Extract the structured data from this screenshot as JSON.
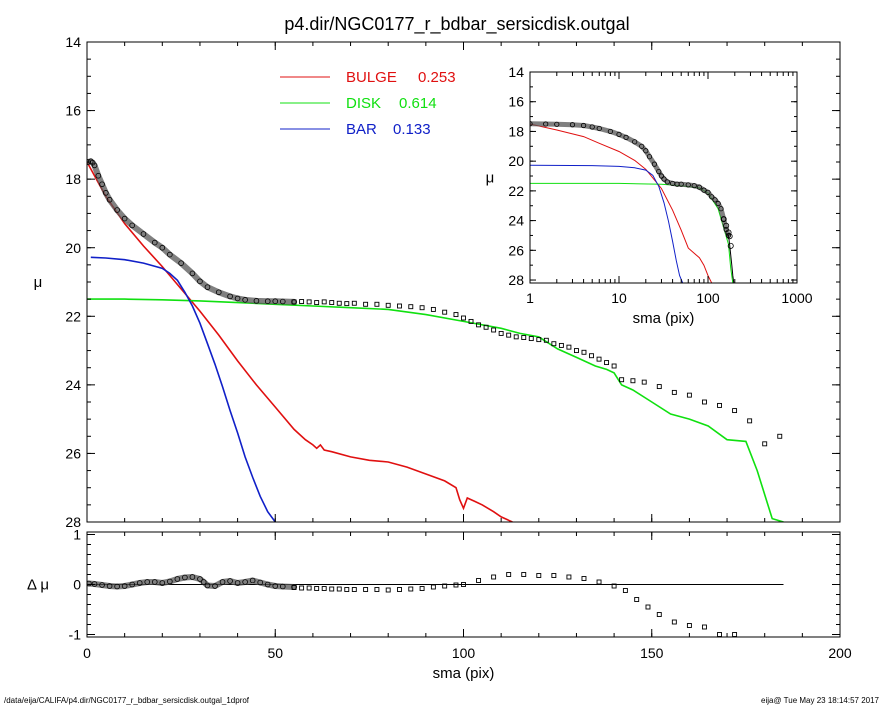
{
  "figure": {
    "title": "p4.dir/NGC0177_r_bdbar_sersicdisk.outgal",
    "footer_left": "/data/eija/CALIFA/p4.dir/NGC0177_r_bdbar_sersicdisk.outgal_1dprof",
    "footer_right": "eija@  Tue May 23 18:14:57 2017"
  },
  "colors": {
    "bulge": "#e01010",
    "disk": "#10e010",
    "bar": "#1020c8",
    "data": "#000000"
  },
  "chart_data": [
    {
      "id": "main",
      "type": "line",
      "title": "p4.dir/NGC0177_r_bdbar_sersicdisk.outgal",
      "xlabel": "",
      "ylabel": "μ",
      "xlim": [
        0,
        200
      ],
      "ylim": [
        28,
        14
      ],
      "yaxis_inverted": true,
      "xticks": [],
      "yticks": [
        "14",
        "16",
        "18",
        "20",
        "22",
        "24",
        "26",
        "28"
      ],
      "legend": {
        "position": "top-center",
        "entries": [
          {
            "label": "BULGE",
            "value": "0.253",
            "color": "#e01010"
          },
          {
            "label": "DISK",
            "value": "0.614",
            "color": "#10e010"
          },
          {
            "label": "BAR",
            "value": "0.133",
            "color": "#1020c8"
          }
        ]
      },
      "series": [
        {
          "name": "BULGE",
          "color": "#e01010",
          "x": [
            0,
            2,
            5,
            10,
            15,
            20,
            25,
            30,
            35,
            40,
            45,
            50,
            55,
            58,
            60,
            61,
            62,
            63,
            65,
            70,
            75,
            80,
            85,
            90,
            95,
            98,
            99,
            100,
            101,
            103,
            105,
            108,
            110,
            112,
            113
          ],
          "y": [
            17.5,
            17.9,
            18.5,
            19.3,
            19.95,
            20.55,
            21.2,
            21.85,
            22.55,
            23.3,
            24.0,
            24.65,
            25.3,
            25.6,
            25.75,
            25.85,
            25.75,
            25.9,
            25.95,
            26.1,
            26.2,
            26.25,
            26.4,
            26.6,
            26.8,
            27.0,
            27.35,
            27.6,
            27.3,
            27.4,
            27.5,
            27.7,
            27.85,
            27.95,
            28.0
          ]
        },
        {
          "name": "DISK",
          "color": "#10e010",
          "x": [
            0,
            10,
            20,
            30,
            40,
            50,
            60,
            70,
            80,
            90,
            100,
            110,
            115,
            120,
            125,
            130,
            135,
            138,
            140,
            142,
            145,
            150,
            155,
            160,
            165,
            170,
            175,
            178,
            180,
            182,
            185
          ],
          "y": [
            21.5,
            21.5,
            21.52,
            21.55,
            21.6,
            21.65,
            21.7,
            21.75,
            21.8,
            21.95,
            22.15,
            22.35,
            22.5,
            22.6,
            22.95,
            23.2,
            23.45,
            23.55,
            23.65,
            24.0,
            24.15,
            24.5,
            24.85,
            25.0,
            25.2,
            25.6,
            25.65,
            26.5,
            27.2,
            27.9,
            28.0
          ]
        },
        {
          "name": "BAR",
          "color": "#1020c8",
          "x": [
            1,
            5,
            10,
            15,
            20,
            22,
            24,
            26,
            28,
            30,
            32,
            34,
            36,
            38,
            40,
            42,
            44,
            46,
            48,
            50
          ],
          "y": [
            20.28,
            20.3,
            20.35,
            20.45,
            20.6,
            20.75,
            20.95,
            21.3,
            21.7,
            22.2,
            22.8,
            23.4,
            24.05,
            24.75,
            25.4,
            26.1,
            26.7,
            27.25,
            27.7,
            28.0
          ]
        },
        {
          "name": "",
          "color": "#000000",
          "style": "model-band",
          "x": [
            0.3,
            1,
            1.5,
            2,
            3,
            4,
            5,
            6,
            8,
            10,
            12,
            15,
            18,
            20,
            22,
            25,
            28,
            30,
            32,
            35,
            38,
            40,
            42,
            45,
            48,
            50,
            52,
            55
          ],
          "y": [
            17.5,
            17.48,
            17.52,
            17.6,
            17.9,
            18.15,
            18.4,
            18.6,
            18.9,
            19.15,
            19.35,
            19.6,
            19.85,
            20.0,
            20.2,
            20.45,
            20.75,
            20.98,
            21.15,
            21.3,
            21.42,
            21.48,
            21.52,
            21.55,
            21.56,
            21.56,
            21.57,
            21.58
          ]
        },
        {
          "name": "",
          "color": "#000000",
          "style": "markers",
          "x": [
            55,
            57,
            59,
            61,
            63,
            65,
            67,
            69,
            71,
            74,
            77,
            80,
            83,
            86,
            89,
            92,
            95,
            98,
            100,
            102,
            104,
            106,
            108,
            110,
            112,
            114,
            116,
            118,
            120,
            122,
            124,
            126,
            128,
            130,
            132,
            134,
            136,
            138,
            140,
            142,
            145,
            148,
            152,
            156,
            160,
            164,
            168,
            172,
            176,
            180,
            184
          ],
          "y": [
            21.58,
            21.57,
            21.58,
            21.6,
            21.58,
            21.6,
            21.62,
            21.63,
            21.62,
            21.65,
            21.65,
            21.68,
            21.7,
            21.72,
            21.75,
            21.8,
            21.88,
            21.95,
            22.05,
            22.15,
            22.25,
            22.32,
            22.4,
            22.5,
            22.55,
            22.6,
            22.62,
            22.65,
            22.68,
            22.7,
            22.8,
            22.85,
            22.9,
            23.0,
            23.05,
            23.15,
            23.25,
            23.35,
            23.45,
            23.85,
            23.88,
            23.92,
            24.05,
            24.22,
            24.3,
            24.5,
            24.6,
            24.75,
            25.05,
            25.72,
            25.5
          ]
        }
      ]
    },
    {
      "id": "residual",
      "type": "scatter",
      "xlabel": "sma (pix)",
      "ylabel": "Δ μ",
      "xlim": [
        0,
        200
      ],
      "ylim": [
        -1.05,
        1.05
      ],
      "xticks": [
        "0",
        "50",
        "100",
        "150",
        "200"
      ],
      "yticks": [
        "-1",
        "0",
        "1"
      ],
      "series": [
        {
          "name": "",
          "color": "#000000",
          "style": "line",
          "x": [
            0,
            185
          ],
          "y": [
            0,
            0
          ]
        },
        {
          "name": "",
          "color": "#000000",
          "style": "model-band",
          "x": [
            0.5,
            2,
            4,
            6,
            8,
            10,
            12,
            14,
            16,
            18,
            20,
            22,
            24,
            26,
            28,
            30,
            31,
            32,
            34,
            36,
            38,
            40,
            42,
            44,
            46,
            48,
            50,
            52,
            55
          ],
          "y": [
            0.02,
            0.01,
            -0.01,
            -0.03,
            -0.04,
            -0.03,
            0.0,
            0.03,
            0.05,
            0.05,
            0.03,
            0.06,
            0.11,
            0.14,
            0.15,
            0.11,
            0.05,
            -0.02,
            -0.03,
            0.05,
            0.07,
            0.03,
            0.05,
            0.08,
            0.04,
            0.0,
            -0.03,
            -0.04,
            -0.05
          ]
        },
        {
          "name": "",
          "color": "#000000",
          "style": "markers",
          "x": [
            55,
            57,
            59,
            61,
            63,
            65,
            67,
            69,
            71,
            74,
            77,
            80,
            83,
            86,
            89,
            92,
            95,
            98,
            100,
            104,
            108,
            112,
            116,
            120,
            124,
            128,
            132,
            136,
            140,
            143,
            146,
            149,
            152,
            156,
            160,
            164,
            168,
            172
          ],
          "y": [
            -0.06,
            -0.07,
            -0.07,
            -0.08,
            -0.08,
            -0.09,
            -0.09,
            -0.1,
            -0.1,
            -0.1,
            -0.1,
            -0.11,
            -0.1,
            -0.09,
            -0.08,
            -0.05,
            -0.03,
            -0.01,
            0.0,
            0.08,
            0.15,
            0.2,
            0.2,
            0.18,
            0.18,
            0.15,
            0.12,
            0.05,
            -0.03,
            -0.12,
            -0.3,
            -0.45,
            -0.6,
            -0.75,
            -0.82,
            -0.85,
            -1.0,
            -1.0
          ]
        }
      ]
    },
    {
      "id": "inset",
      "type": "line",
      "xscale": "log",
      "xlabel": "sma (pix)",
      "ylabel": "μ",
      "xlim": [
        1,
        1000
      ],
      "ylim": [
        28.2,
        14
      ],
      "yaxis_inverted": true,
      "xticks": [
        "1",
        "10",
        "100",
        "1000"
      ],
      "yticks": [
        "14",
        "16",
        "18",
        "20",
        "22",
        "24",
        "26",
        "28"
      ],
      "series": [
        {
          "name": "BULGE",
          "color": "#e01010",
          "x": [
            1,
            2,
            4,
            6,
            10,
            15,
            20,
            30,
            40,
            50,
            60,
            70,
            80,
            90,
            100,
            110
          ],
          "y": [
            17.5,
            17.9,
            18.35,
            18.8,
            19.35,
            19.95,
            20.55,
            21.85,
            23.3,
            24.65,
            25.85,
            26.2,
            26.5,
            27.0,
            27.7,
            28.2
          ]
        },
        {
          "name": "DISK",
          "color": "#10e010",
          "x": [
            1,
            10,
            30,
            50,
            80,
            100,
            130,
            150,
            170,
            180,
            190
          ],
          "y": [
            21.5,
            21.5,
            21.55,
            21.65,
            21.8,
            22.15,
            23.2,
            24.5,
            25.6,
            27.2,
            28.2
          ]
        },
        {
          "name": "BAR",
          "color": "#1020c8",
          "x": [
            1,
            5,
            10,
            15,
            20,
            24,
            28,
            32,
            36,
            40,
            44,
            48,
            52
          ],
          "y": [
            20.28,
            20.3,
            20.35,
            20.45,
            20.6,
            20.95,
            21.7,
            22.8,
            24.05,
            25.4,
            26.7,
            27.7,
            28.2
          ]
        },
        {
          "name": "",
          "color": "#000000",
          "style": "model-band",
          "x": [
            1,
            1.5,
            2,
            3,
            4,
            5,
            6,
            8,
            10,
            12,
            15,
            18,
            20,
            22,
            25,
            28,
            30,
            32,
            35,
            40,
            45,
            50,
            60,
            70,
            80,
            90,
            100,
            110,
            120,
            130,
            140,
            150,
            160,
            170
          ],
          "y": [
            17.48,
            17.5,
            17.52,
            17.55,
            17.6,
            17.7,
            17.8,
            18.0,
            18.2,
            18.4,
            18.7,
            19.0,
            19.3,
            19.7,
            20.2,
            20.7,
            21.0,
            21.2,
            21.4,
            21.5,
            21.55,
            21.55,
            21.6,
            21.65,
            21.75,
            21.95,
            22.1,
            22.4,
            22.6,
            22.85,
            23.2,
            23.9,
            24.6,
            25.0
          ]
        },
        {
          "name": "",
          "color": "#000000",
          "style": "markers-circle",
          "x": [
            150,
            160,
            170,
            175,
            180
          ],
          "y": [
            23.9,
            24.35,
            24.8,
            25.05,
            25.7
          ]
        },
        {
          "name": "",
          "color": "#000000",
          "style": "line",
          "x": [
            170,
            175,
            180,
            185,
            190,
            195
          ],
          "y": [
            25.0,
            25.6,
            26.3,
            27.0,
            27.7,
            28.2
          ]
        }
      ]
    }
  ]
}
